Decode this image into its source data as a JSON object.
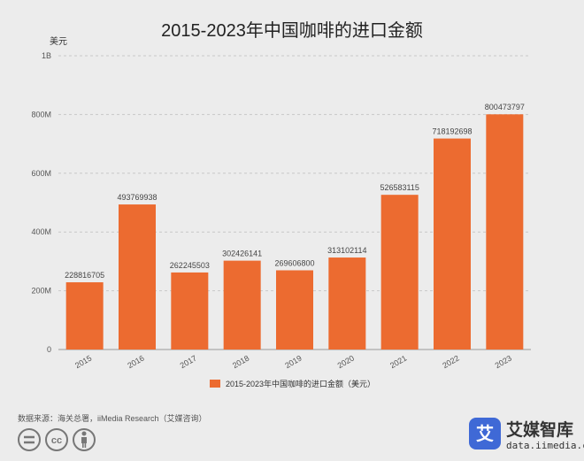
{
  "chart_data": {
    "type": "bar",
    "title": "2015-2023年中国咖啡的进口金额",
    "ylabel": "美元",
    "categories": [
      "2015",
      "2016",
      "2017",
      "2018",
      "2019",
      "2020",
      "2021",
      "2022",
      "2023"
    ],
    "series": [
      {
        "name": "2015-2023年中国咖啡的进口金额（美元）",
        "values": [
          228816705,
          493769938,
          262245503,
          302426141,
          269606800,
          313102114,
          526583115,
          718192698,
          800473797
        ],
        "labels": [
          "228816705",
          "493769938",
          "262245503",
          "302426141",
          "269606800",
          "313102114",
          "526583115",
          "718192698",
          "800473797"
        ]
      }
    ],
    "ylim": [
      0,
      1000000000
    ],
    "yticks": [
      {
        "value": 0,
        "label": "0"
      },
      {
        "value": 200000000,
        "label": "200M"
      },
      {
        "value": 400000000,
        "label": "400M"
      },
      {
        "value": 600000000,
        "label": "600M"
      },
      {
        "value": 800000000,
        "label": "800M"
      },
      {
        "value": 1000000000,
        "label": "1B"
      }
    ],
    "grid": true,
    "legend_position": "bottom-center",
    "bar_color": "#ec6b30"
  },
  "footer": {
    "source": "数据来源：海关总署，iiMedia Research（艾媒咨询）",
    "brand_name": "艾媒智库",
    "brand_url": "data.iimedia.cn",
    "brand_logo_char": "艾",
    "brand_color": "#3f69d6",
    "license_icons": [
      "equals-icon",
      "cc-icon",
      "person-icon"
    ]
  }
}
